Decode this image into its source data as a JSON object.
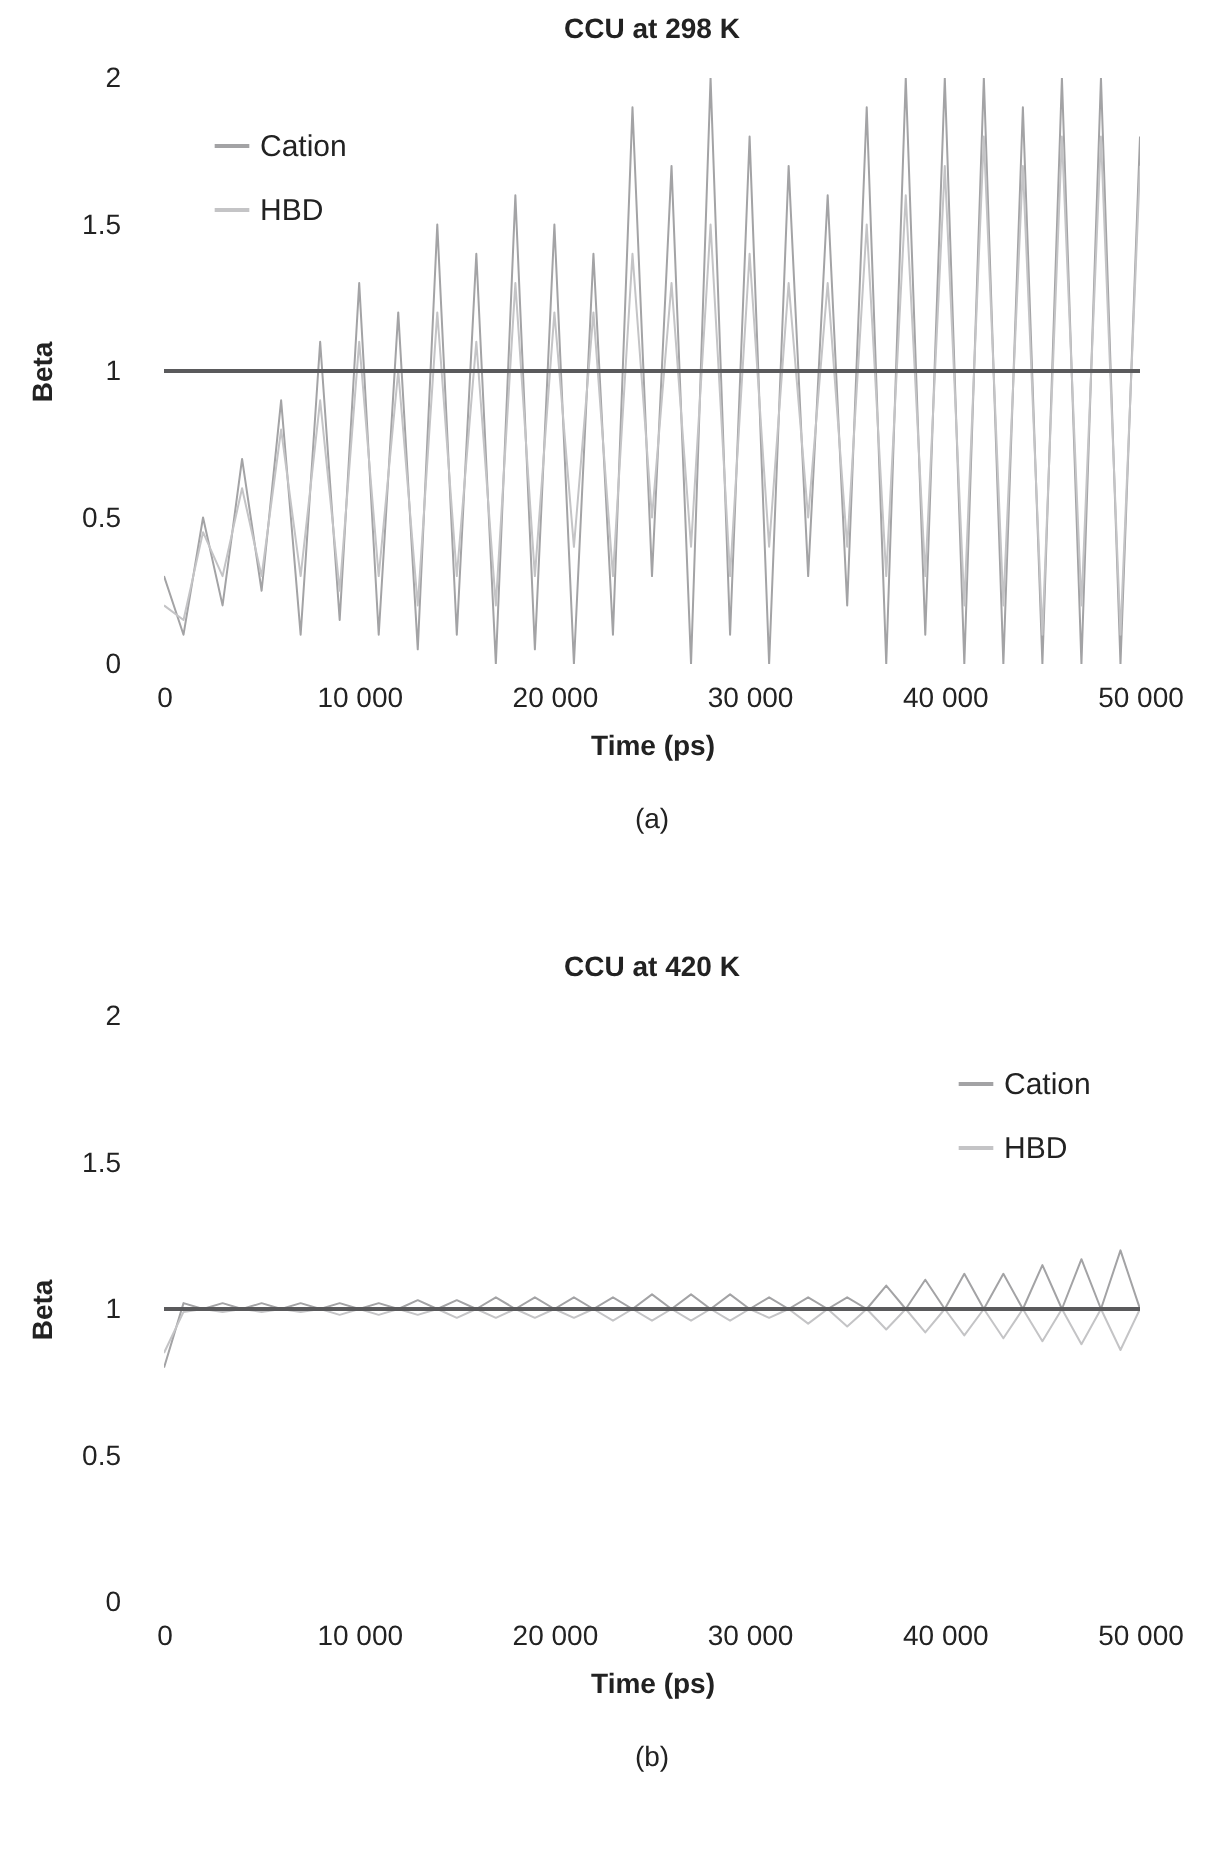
{
  "chart_data": [
    {
      "type": "line",
      "title": "CCU at 298 K",
      "xlabel": "Time (ps)",
      "ylabel": "Beta",
      "annotations": [
        "(a)"
      ],
      "x": [
        0,
        1000,
        2000,
        3000,
        4000,
        5000,
        6000,
        7000,
        8000,
        9000,
        10000,
        11000,
        12000,
        13000,
        14000,
        15000,
        16000,
        17000,
        18000,
        19000,
        20000,
        21000,
        22000,
        23000,
        24000,
        25000,
        26000,
        27000,
        28000,
        29000,
        30000,
        31000,
        32000,
        33000,
        34000,
        35000,
        36000,
        37000,
        38000,
        39000,
        40000,
        41000,
        42000,
        43000,
        44000,
        45000,
        46000,
        47000,
        48000,
        49000,
        50000
      ],
      "series": [
        {
          "name": "Cation",
          "color": "#a3a3a5",
          "values": [
            0.3,
            0.1,
            0.5,
            0.2,
            0.7,
            0.25,
            0.9,
            0.1,
            1.1,
            0.15,
            1.3,
            0.1,
            1.2,
            0.05,
            1.5,
            0.1,
            1.4,
            0,
            1.6,
            0.05,
            1.5,
            0,
            1.4,
            0.1,
            1.9,
            0.3,
            1.7,
            0,
            2,
            0.1,
            1.8,
            0,
            1.7,
            0.3,
            1.6,
            0.2,
            1.9,
            0,
            2,
            0.1,
            2,
            0,
            2,
            0,
            1.9,
            0,
            2,
            0,
            2,
            0,
            1.8
          ]
        },
        {
          "name": "HBD",
          "color": "#c4c4c6",
          "values": [
            0.2,
            0.15,
            0.45,
            0.3,
            0.6,
            0.3,
            0.8,
            0.3,
            0.9,
            0.25,
            1.1,
            0.3,
            1.0,
            0.2,
            1.2,
            0.3,
            1.1,
            0.2,
            1.3,
            0.3,
            1.2,
            0.4,
            1.2,
            0.3,
            1.4,
            0.5,
            1.3,
            0.4,
            1.5,
            0.3,
            1.4,
            0.4,
            1.3,
            0.5,
            1.3,
            0.4,
            1.5,
            0.3,
            1.6,
            0.3,
            1.7,
            0.2,
            1.8,
            0.2,
            1.7,
            0.1,
            1.8,
            0.2,
            1.8,
            0.1,
            1.7
          ]
        }
      ],
      "ref_lines": [
        {
          "axis": "y",
          "value": 1,
          "color": "#5a5a5c"
        }
      ],
      "xlim": [
        0,
        50000
      ],
      "xticks": [
        0,
        {
          "value": 10000,
          "label": "10 000"
        },
        {
          "value": 20000,
          "label": "20 000"
        },
        {
          "value": 30000,
          "label": "30 000"
        },
        {
          "value": 40000,
          "label": "40 000"
        },
        {
          "value": 50000,
          "label": "50 000"
        }
      ],
      "ylim": [
        0,
        2
      ],
      "yticks": [
        0,
        0.5,
        1,
        1.5,
        2
      ],
      "legend": "top left",
      "grid": false
    },
    {
      "type": "line",
      "title": "CCU at 420 K",
      "xlabel": "Time (ps)",
      "ylabel": "Beta",
      "annotations": [
        "(b)"
      ],
      "x": [
        0,
        1000,
        2000,
        3000,
        4000,
        5000,
        6000,
        7000,
        8000,
        9000,
        10000,
        11000,
        12000,
        13000,
        14000,
        15000,
        16000,
        17000,
        18000,
        19000,
        20000,
        21000,
        22000,
        23000,
        24000,
        25000,
        26000,
        27000,
        28000,
        29000,
        30000,
        31000,
        32000,
        33000,
        34000,
        35000,
        36000,
        37000,
        38000,
        39000,
        40000,
        41000,
        42000,
        43000,
        44000,
        45000,
        46000,
        47000,
        48000,
        49000,
        50000
      ],
      "series": [
        {
          "name": "Cation",
          "color": "#a3a3a5",
          "values": [
            0.8,
            1.02,
            1.0,
            1.02,
            1.0,
            1.02,
            1.0,
            1.02,
            1.0,
            1.02,
            1.0,
            1.02,
            1.0,
            1.03,
            1.0,
            1.03,
            1.0,
            1.04,
            1.0,
            1.04,
            1.0,
            1.04,
            1.0,
            1.04,
            1.0,
            1.05,
            1.0,
            1.05,
            1.0,
            1.05,
            1.0,
            1.04,
            1.0,
            1.04,
            1.0,
            1.04,
            1.0,
            1.08,
            1.0,
            1.1,
            1.0,
            1.12,
            1.0,
            1.12,
            1.0,
            1.15,
            1.0,
            1.17,
            1.0,
            1.2,
            1.0
          ]
        },
        {
          "name": "HBD",
          "color": "#c4c4c6",
          "values": [
            0.85,
            0.99,
            1.0,
            0.99,
            1.0,
            0.99,
            1.0,
            0.99,
            1.0,
            0.98,
            1.0,
            0.98,
            1.0,
            0.98,
            1.0,
            0.97,
            1.0,
            0.97,
            1.0,
            0.97,
            1.0,
            0.97,
            1.0,
            0.96,
            1.0,
            0.96,
            1.0,
            0.96,
            1.0,
            0.96,
            1.0,
            0.97,
            1.0,
            0.95,
            1.0,
            0.94,
            1.0,
            0.93,
            1.0,
            0.92,
            1.0,
            0.91,
            1.0,
            0.9,
            1.0,
            0.89,
            1.0,
            0.88,
            1.0,
            0.86,
            1.0
          ]
        }
      ],
      "ref_lines": [
        {
          "axis": "y",
          "value": 1,
          "color": "#5a5a5c"
        }
      ],
      "xlim": [
        0,
        50000
      ],
      "xticks": [
        0,
        {
          "value": 10000,
          "label": "10 000"
        },
        {
          "value": 20000,
          "label": "20 000"
        },
        {
          "value": 30000,
          "label": "30 000"
        },
        {
          "value": 40000,
          "label": "40 000"
        },
        {
          "value": 50000,
          "label": "50 000"
        }
      ],
      "ylim": [
        0,
        2
      ],
      "yticks": [
        0,
        0.5,
        1,
        1.5,
        2
      ],
      "legend": "top right",
      "grid": false
    }
  ]
}
